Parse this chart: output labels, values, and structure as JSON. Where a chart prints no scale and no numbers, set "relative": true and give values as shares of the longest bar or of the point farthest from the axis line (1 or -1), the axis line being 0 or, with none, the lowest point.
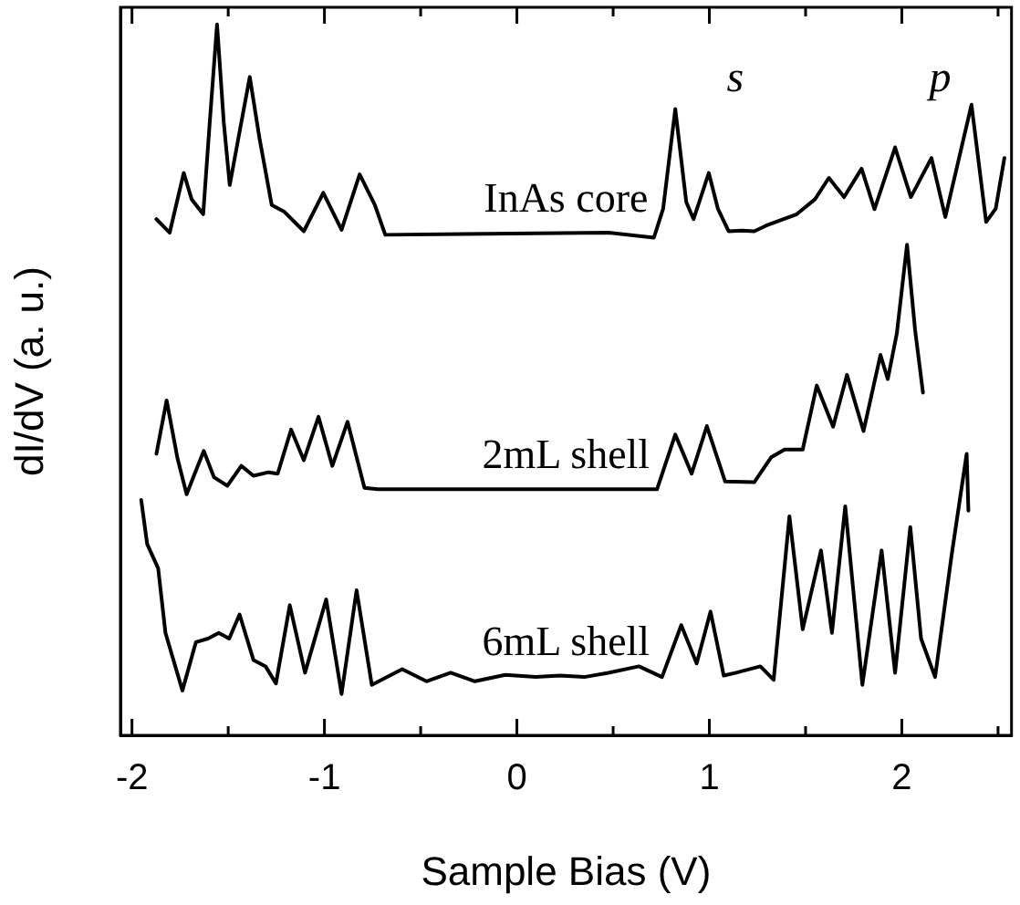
{
  "chart_data": {
    "type": "line",
    "relative": true,
    "xlabel": "Sample Bias (V)",
    "ylabel": "dI/dV (a. u.)",
    "xlim": [
      -2.06,
      2.57
    ],
    "xticks": [
      -2,
      {
        "value": -1.5,
        "label": null
      },
      -1,
      {
        "value": -0.5,
        "label": null
      },
      0,
      {
        "value": 0.5,
        "label": null
      },
      1,
      {
        "value": 1.5,
        "label": null
      },
      2,
      {
        "value": 2.5,
        "label": null
      }
    ],
    "grid": false,
    "legend": false,
    "marker": "none",
    "line_style": "solid",
    "annotations": [
      "s",
      "p"
    ],
    "series": [
      {
        "name": "InAs core",
        "color": "#000000",
        "x": [
          -1.873,
          -1.804,
          -1.731,
          -1.69,
          -1.63,
          -1.596,
          -1.558,
          -1.523,
          -1.492,
          -1.447,
          -1.388,
          -1.337,
          -1.274,
          -1.211,
          -1.107,
          -1.006,
          -0.911,
          -0.817,
          -0.738,
          -0.684,
          0.476,
          0.712,
          0.76,
          0.823,
          0.88,
          0.918,
          0.997,
          1.044,
          1.1,
          1.17,
          1.233,
          1.296,
          1.454,
          1.549,
          1.621,
          1.7,
          1.791,
          1.858,
          1.965,
          2.047,
          2.154,
          2.226,
          2.362,
          2.438,
          2.488,
          2.533
        ],
        "values": [
          0.726,
          0.707,
          0.791,
          0.754,
          0.733,
          0.862,
          1,
          0.862,
          0.774,
          0.84,
          0.926,
          0.839,
          0.746,
          0.737,
          0.709,
          0.763,
          0.711,
          0.789,
          0.746,
          0.704,
          0.707,
          0.7,
          0.741,
          0.881,
          0.75,
          0.726,
          0.791,
          0.741,
          0.709,
          0.71,
          0.709,
          0.717,
          0.733,
          0.754,
          0.784,
          0.757,
          0.797,
          0.74,
          0.827,
          0.757,
          0.812,
          0.729,
          0.887,
          0.722,
          0.741,
          0.812
        ]
      },
      {
        "name": "2mL shell",
        "color": "#000000",
        "x": [
          -1.873,
          -1.82,
          -1.763,
          -1.716,
          -1.668,
          -1.627,
          -1.574,
          -1.504,
          -1.432,
          -1.369,
          -1.29,
          -1.243,
          -1.173,
          -1.107,
          -1.031,
          -0.959,
          -0.88,
          -0.792,
          -0.722,
          0.728,
          0.823,
          0.908,
          0.987,
          1.082,
          1.233,
          1.321,
          1.391,
          1.485,
          1.558,
          1.643,
          1.715,
          1.801,
          1.889,
          1.927,
          1.974,
          2.027,
          2.069,
          2.11
        ],
        "values": [
          0.396,
          0.471,
          0.389,
          0.339,
          0.372,
          0.4,
          0.363,
          0.351,
          0.379,
          0.365,
          0.37,
          0.368,
          0.43,
          0.387,
          0.448,
          0.379,
          0.441,
          0.348,
          0.346,
          0.346,
          0.423,
          0.368,
          0.435,
          0.357,
          0.356,
          0.391,
          0.402,
          0.402,
          0.492,
          0.434,
          0.507,
          0.428,
          0.535,
          0.501,
          0.565,
          0.69,
          0.57,
          0.482
        ]
      },
      {
        "name": "6mL shell",
        "color": "#000000",
        "x": [
          -1.952,
          -1.921,
          -1.864,
          -1.826,
          -1.738,
          -1.668,
          -1.605,
          -1.549,
          -1.495,
          -1.441,
          -1.369,
          -1.306,
          -1.252,
          -1.18,
          -1.101,
          -0.991,
          -0.911,
          -0.833,
          -0.754,
          -0.596,
          -0.47,
          -0.344,
          -0.218,
          -0.06,
          0.098,
          0.224,
          0.35,
          0.476,
          0.634,
          0.754,
          0.854,
          0.934,
          1.006,
          1.075,
          1.139,
          1.265,
          1.334,
          1.416,
          1.485,
          1.58,
          1.637,
          1.706,
          1.795,
          1.895,
          1.965,
          2.044,
          2.1,
          2.173,
          2.258,
          2.305,
          2.337,
          2.346
        ],
        "values": [
          0.331,
          0.269,
          0.235,
          0.144,
          0.063,
          0.131,
          0.136,
          0.144,
          0.136,
          0.17,
          0.106,
          0.097,
          0.073,
          0.183,
          0.088,
          0.191,
          0.058,
          0.204,
          0.071,
          0.093,
          0.076,
          0.088,
          0.076,
          0.085,
          0.082,
          0.084,
          0.082,
          0.088,
          0.097,
          0.082,
          0.155,
          0.101,
          0.174,
          0.084,
          0.088,
          0.097,
          0.078,
          0.308,
          0.149,
          0.26,
          0.144,
          0.322,
          0.071,
          0.26,
          0.088,
          0.293,
          0.136,
          0.082,
          0.252,
          0.338,
          0.396,
          0.316
        ]
      }
    ]
  }
}
